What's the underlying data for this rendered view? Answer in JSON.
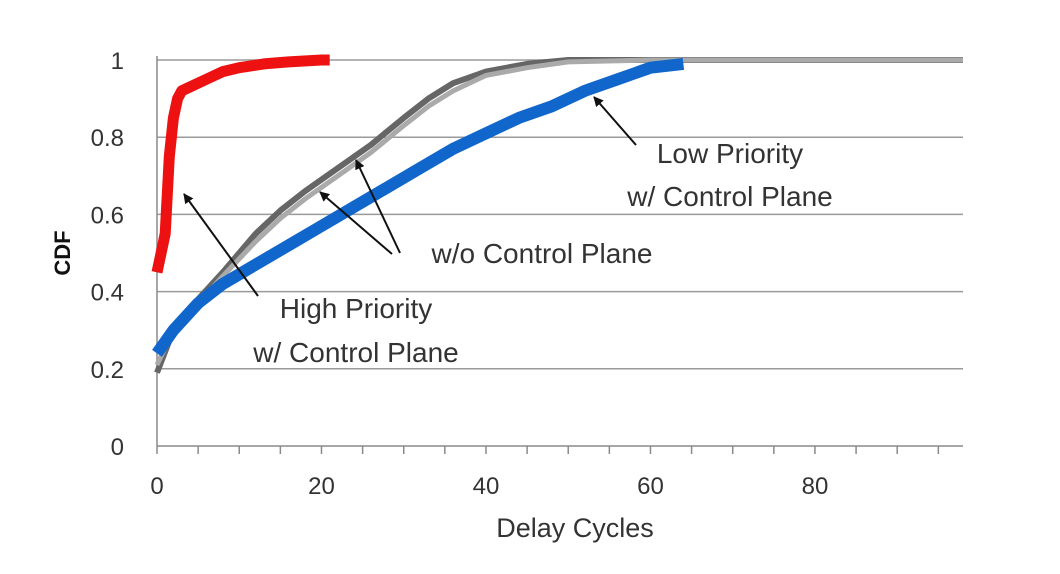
{
  "chart_data": {
    "type": "line",
    "xlabel": "Delay Cycles",
    "ylabel": "CDF",
    "xlim": [
      0,
      98
    ],
    "ylim": [
      0,
      1
    ],
    "xticks": [
      0,
      20,
      40,
      60,
      80
    ],
    "xtick_labels": [
      "0",
      "20",
      "40",
      "60",
      "80"
    ],
    "yticks": [
      0,
      0.2,
      0.4,
      0.6,
      0.8,
      1
    ],
    "ytick_labels": [
      "0",
      "0.2",
      "0.4",
      "0.6",
      "0.8",
      "1"
    ],
    "grid": "horizontal",
    "series": [
      {
        "key": "without-control-plane-a",
        "color": "#666666",
        "x": [
          0,
          2,
          5,
          8,
          12,
          15,
          18,
          22,
          26,
          30,
          33,
          36,
          40,
          45,
          50,
          60,
          70,
          98
        ],
        "y": [
          0.19,
          0.3,
          0.38,
          0.45,
          0.55,
          0.61,
          0.66,
          0.72,
          0.78,
          0.85,
          0.9,
          0.94,
          0.97,
          0.99,
          1.0,
          1.0,
          1.0,
          1.0
        ]
      },
      {
        "key": "without-control-plane-b",
        "color": "#aaaaaa",
        "x": [
          0,
          2,
          5,
          8,
          12,
          15,
          18,
          22,
          26,
          30,
          33,
          36,
          40,
          45,
          50,
          60,
          70,
          98
        ],
        "y": [
          0.21,
          0.3,
          0.37,
          0.44,
          0.53,
          0.59,
          0.64,
          0.7,
          0.76,
          0.83,
          0.88,
          0.92,
          0.96,
          0.98,
          0.995,
          1.0,
          1.0,
          1.0
        ]
      },
      {
        "key": "high-priority",
        "color": "#ee1111",
        "x": [
          0,
          1,
          1.5,
          2,
          2.5,
          3,
          4,
          6,
          8,
          10,
          13,
          16,
          20,
          21
        ],
        "y": [
          0.45,
          0.55,
          0.75,
          0.85,
          0.9,
          0.92,
          0.93,
          0.95,
          0.97,
          0.98,
          0.99,
          0.995,
          1.0,
          1.0
        ]
      },
      {
        "key": "low-priority",
        "color": "#1166cc",
        "x": [
          0,
          2,
          5,
          8,
          12,
          16,
          20,
          24,
          28,
          32,
          36,
          40,
          44,
          48,
          52,
          56,
          60,
          64
        ],
        "y": [
          0.24,
          0.3,
          0.37,
          0.42,
          0.47,
          0.52,
          0.57,
          0.62,
          0.67,
          0.72,
          0.77,
          0.81,
          0.85,
          0.88,
          0.92,
          0.95,
          0.98,
          0.99
        ]
      }
    ],
    "annotations": [
      {
        "key": "high",
        "lines": [
          "High Priority",
          "w/ Control Plane"
        ]
      },
      {
        "key": "wo",
        "lines": [
          "w/o Control Plane"
        ]
      },
      {
        "key": "low",
        "lines": [
          "Low Priority",
          "w/ Control Plane"
        ]
      }
    ]
  }
}
